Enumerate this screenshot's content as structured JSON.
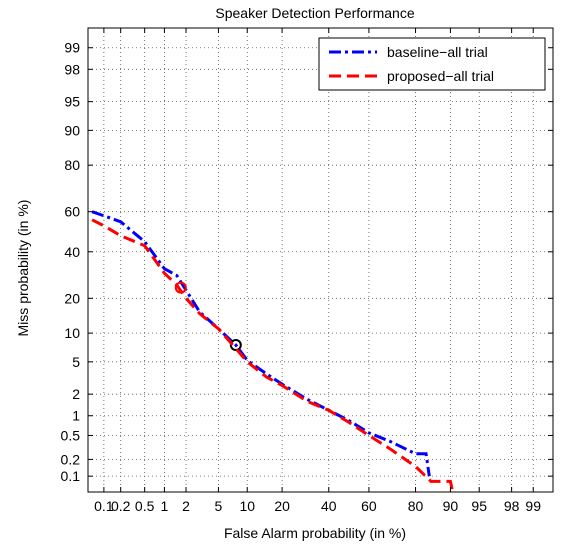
{
  "chart_data": {
    "type": "line",
    "title": "Speaker Detection Performance",
    "xlabel": "False Alarm probability (in %)",
    "ylabel": "Miss probability (in %)",
    "axis_scale": "normal-deviate (DET)",
    "xlim": [
      0.05,
      99.5
    ],
    "ylim": [
      0.05,
      99.5
    ],
    "grid": true,
    "grid_style": "dotted",
    "legend_position": "top-right",
    "x_ticks": [
      "0.1",
      "0.2",
      "0.5",
      "1",
      "2",
      "5",
      "10",
      "20",
      "40",
      "60",
      "80",
      "90",
      "95",
      "98",
      "99"
    ],
    "y_ticks": [
      "0.1",
      "0.2",
      "0.5",
      "1",
      "2",
      "5",
      "10",
      "20",
      "40",
      "60",
      "80",
      "90",
      "95",
      "98",
      "99"
    ],
    "series": [
      {
        "name": "baseline−all trial",
        "color": "#0000ff",
        "dash": "dash-dot",
        "x": [
          0.06,
          0.1,
          0.2,
          0.5,
          1,
          1.5,
          2,
          3,
          5,
          7.7,
          10,
          15,
          20,
          30,
          40,
          50,
          60,
          70,
          80,
          83.5,
          84.5
        ],
        "y": [
          60,
          58,
          55,
          45,
          32,
          29,
          23,
          15.5,
          11,
          7.6,
          5.2,
          3.6,
          2.7,
          1.7,
          1.2,
          0.85,
          0.55,
          0.4,
          0.25,
          0.25,
          0.1
        ],
        "eer_point": {
          "x": 7.7,
          "y": 7.6,
          "color": "#000000"
        }
      },
      {
        "name": "proposed−all trial",
        "color": "#ff0000",
        "dash": "dashed",
        "x": [
          0.06,
          0.1,
          0.2,
          0.5,
          1,
          1.5,
          2,
          3,
          5,
          7.7,
          10,
          15,
          20,
          30,
          40,
          50,
          60,
          70,
          80,
          85,
          90,
          90.5
        ],
        "y": [
          56,
          53,
          48,
          43,
          30,
          25,
          20,
          15,
          11,
          7,
          5,
          3.3,
          2.6,
          1.6,
          1.2,
          0.8,
          0.5,
          0.3,
          0.15,
          0.08,
          0.08,
          0.05
        ],
        "eer_point": {
          "x": 1.7,
          "y": 24,
          "color": "#ff0000"
        }
      }
    ]
  }
}
